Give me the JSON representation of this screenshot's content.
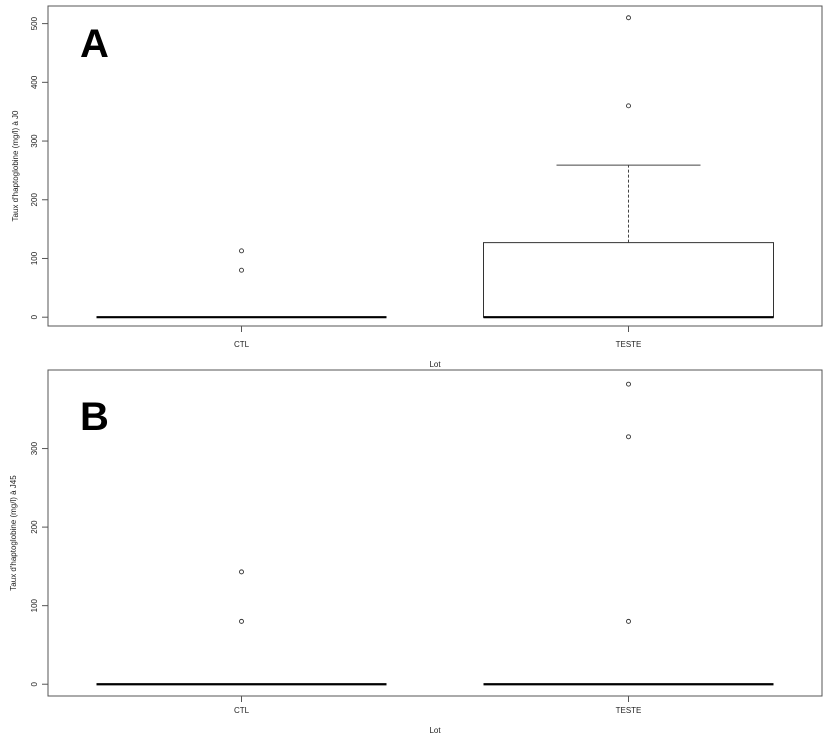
{
  "chart_data": [
    {
      "type": "boxplot",
      "panel_label": "A",
      "xlabel": "Lot",
      "ylabel": "Taux d'haptoglobine (mg/l) à J0",
      "categories": [
        "CTL",
        "TESTE"
      ],
      "ylim": [
        -15,
        530
      ],
      "yticks": [
        0,
        100,
        200,
        300,
        400,
        500
      ],
      "boxes": [
        {
          "category": "CTL",
          "min": 0,
          "q1": 0,
          "median": 0,
          "q3": 0,
          "max": 0,
          "outliers": [
            80,
            113
          ]
        },
        {
          "category": "TESTE",
          "min": 0,
          "q1": 0,
          "median": 0,
          "q3": 127,
          "max": 259,
          "outliers": [
            360,
            510
          ]
        }
      ],
      "grid": false
    },
    {
      "type": "boxplot",
      "panel_label": "B",
      "xlabel": "Lot",
      "ylabel": "Taux d'haptoglobine (mg/l) à J45",
      "categories": [
        "CTL",
        "TESTE"
      ],
      "ylim": [
        -15,
        400
      ],
      "yticks": [
        0,
        100,
        200,
        300
      ],
      "boxes": [
        {
          "category": "CTL",
          "min": 0,
          "q1": 0,
          "median": 0,
          "q3": 0,
          "max": 0,
          "outliers": [
            80,
            143
          ]
        },
        {
          "category": "TESTE",
          "min": 0,
          "q1": 0,
          "median": 0,
          "q3": 0,
          "max": 0,
          "outliers": [
            80,
            315,
            382
          ]
        }
      ],
      "grid": false
    }
  ]
}
